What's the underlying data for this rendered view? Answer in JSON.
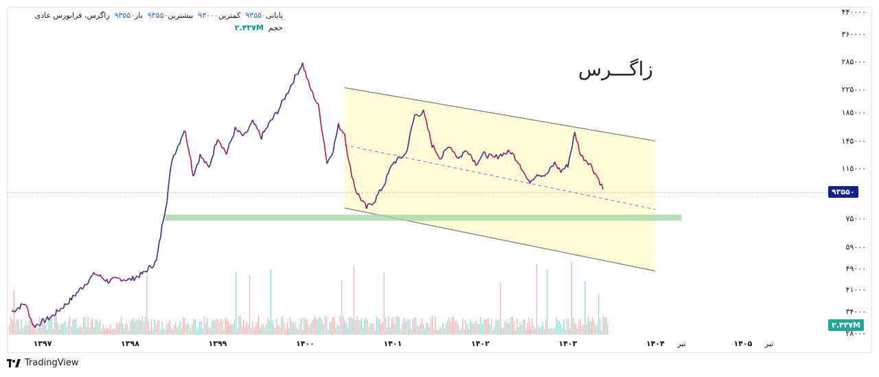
{
  "legend": {
    "symbol_text": "زاگرس، فرابورس عادی",
    "open_label": "باز",
    "open_value": "۹۳۵۵۰",
    "high_label": "بیشترین",
    "high_value": "۹۳۵۵۰",
    "low_label": "کمترین",
    "low_value": "۹۳۰۰۰",
    "close_label": "پایانی",
    "close_value": "۹۳۵۵۰",
    "volume_label": "حجم",
    "volume_value": "۲.۴۳۷M"
  },
  "watermark": "زاگـــرس",
  "footer": {
    "brand": "TradingView"
  },
  "badges": {
    "last_price": "۹۳۵۵۰",
    "volume": "۲.۴۳۷M"
  },
  "colors": {
    "up": "#2a2f8f",
    "down": "#b0174f",
    "channel_fill": "#fffbd6",
    "support": "#9fd49f",
    "vol_up": "#7fd3c7",
    "vol_down": "#f3a3a3",
    "accent": "#131f8f"
  },
  "chart_data": {
    "type": "line",
    "scale": "log",
    "ylim": [
      28000,
      440000
    ],
    "y_ticks": [
      {
        "value": 440000,
        "label": "۴۴۰۰۰۰"
      },
      {
        "value": 360000,
        "label": "۳۶۰۰۰۰"
      },
      {
        "value": 285000,
        "label": "۲۸۵۰۰۰"
      },
      {
        "value": 225000,
        "label": "۲۲۵۰۰۰"
      },
      {
        "value": 185000,
        "label": "۱۸۵۰۰۰"
      },
      {
        "value": 145000,
        "label": "۱۴۵۰۰۰"
      },
      {
        "value": 115000,
        "label": "۱۱۵۰۰۰"
      },
      {
        "value": 75000,
        "label": "۷۵۰۰۰"
      },
      {
        "value": 59000,
        "label": "۵۹۰۰۰"
      },
      {
        "value": 49000,
        "label": "۴۹۰۰۰"
      },
      {
        "value": 41000,
        "label": "۴۱۰۰۰"
      },
      {
        "value": 34000,
        "label": "۳۴۰۰۰"
      },
      {
        "value": 28000,
        "label": "۲۸۰۰۰"
      }
    ],
    "x_ticks": [
      {
        "value": 1397,
        "label": "۱۳۹۷"
      },
      {
        "value": 1398,
        "label": "۱۳۹۸"
      },
      {
        "value": 1399,
        "label": "۱۳۹۹"
      },
      {
        "value": 1400,
        "label": "۱۴۰۰"
      },
      {
        "value": 1401,
        "label": "۱۴۰۱"
      },
      {
        "value": 1402,
        "label": "۱۴۰۲"
      },
      {
        "value": 1403,
        "label": "۱۴۰۳"
      },
      {
        "value": 1404,
        "label": "۱۴۰۴"
      },
      {
        "value": 1404.3,
        "label": "تیر"
      },
      {
        "value": 1405,
        "label": "۱۴۰۵"
      },
      {
        "value": 1405.3,
        "label": "تیر"
      }
    ],
    "xlim": [
      1396.6,
      1405.95
    ],
    "last_price": 93550,
    "price_series": [
      [
        1396.65,
        34000
      ],
      [
        1396.8,
        36500
      ],
      [
        1396.9,
        30000
      ],
      [
        1397.1,
        32500
      ],
      [
        1397.3,
        37000
      ],
      [
        1397.5,
        43500
      ],
      [
        1397.6,
        47000
      ],
      [
        1397.75,
        44000
      ],
      [
        1397.9,
        45000
      ],
      [
        1398.0,
        44500
      ],
      [
        1398.15,
        47000
      ],
      [
        1398.3,
        52000
      ],
      [
        1398.38,
        75000
      ],
      [
        1398.42,
        88000
      ],
      [
        1398.48,
        125000
      ],
      [
        1398.55,
        140000
      ],
      [
        1398.62,
        160000
      ],
      [
        1398.68,
        132000
      ],
      [
        1398.72,
        108000
      ],
      [
        1398.8,
        128000
      ],
      [
        1398.9,
        115000
      ],
      [
        1399.0,
        150000
      ],
      [
        1399.1,
        130000
      ],
      [
        1399.2,
        160000
      ],
      [
        1399.3,
        150000
      ],
      [
        1399.4,
        170000
      ],
      [
        1399.5,
        150000
      ],
      [
        1399.6,
        170000
      ],
      [
        1399.7,
        190000
      ],
      [
        1399.8,
        220000
      ],
      [
        1399.9,
        255000
      ],
      [
        1399.97,
        280000
      ],
      [
        1400.05,
        230000
      ],
      [
        1400.15,
        195000
      ],
      [
        1400.2,
        155000
      ],
      [
        1400.25,
        120000
      ],
      [
        1400.32,
        135000
      ],
      [
        1400.38,
        165000
      ],
      [
        1400.45,
        155000
      ],
      [
        1400.5,
        120000
      ],
      [
        1400.58,
        95000
      ],
      [
        1400.7,
        82000
      ],
      [
        1400.8,
        88000
      ],
      [
        1400.9,
        100000
      ],
      [
        1401.0,
        120000
      ],
      [
        1401.08,
        125000
      ],
      [
        1401.15,
        130000
      ],
      [
        1401.25,
        180000
      ],
      [
        1401.35,
        185000
      ],
      [
        1401.45,
        140000
      ],
      [
        1401.55,
        125000
      ],
      [
        1401.65,
        140000
      ],
      [
        1401.75,
        125000
      ],
      [
        1401.85,
        135000
      ],
      [
        1401.95,
        120000
      ],
      [
        1402.05,
        130000
      ],
      [
        1402.15,
        125000
      ],
      [
        1402.25,
        130000
      ],
      [
        1402.35,
        132000
      ],
      [
        1402.45,
        120000
      ],
      [
        1402.55,
        102000
      ],
      [
        1402.65,
        110000
      ],
      [
        1402.75,
        108000
      ],
      [
        1402.85,
        120000
      ],
      [
        1402.92,
        112000
      ],
      [
        1403.0,
        118000
      ],
      [
        1403.08,
        155000
      ],
      [
        1403.15,
        128000
      ],
      [
        1403.25,
        120000
      ],
      [
        1403.35,
        105000
      ],
      [
        1403.42,
        93550
      ]
    ],
    "channel": {
      "upper": [
        [
          1400.45,
          228000
        ],
        [
          1404.0,
          145000
        ]
      ],
      "lower": [
        [
          1400.45,
          82000
        ],
        [
          1404.0,
          48000
        ]
      ],
      "mid": [
        [
          1400.45,
          140000
        ],
        [
          1404.0,
          81000
        ]
      ]
    },
    "support_zone": {
      "x": [
        1398.4,
        1404.3
      ],
      "y": [
        74000,
        77500
      ]
    },
    "volume_max_label": "۲.۴۳۷M"
  }
}
